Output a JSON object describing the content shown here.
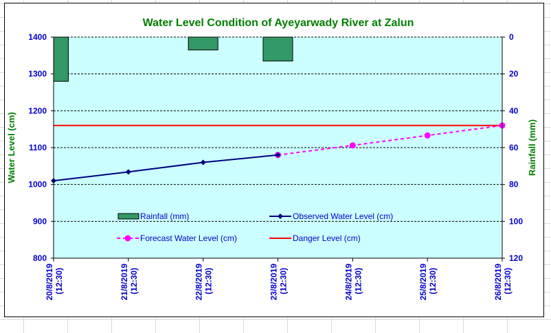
{
  "chart_data": {
    "type": "bar+line",
    "title": "Water Level Condition  of Ayeyarwady  River at Zalun",
    "ylabel": "Water Level (cm)",
    "y2label": "Rainfall (mm)",
    "ylim": [
      800,
      1400
    ],
    "y2lim": [
      0,
      120
    ],
    "y2_inverted": true,
    "yticks": [
      "800",
      "900",
      "1000",
      "1100",
      "1200",
      "1300",
      "1400"
    ],
    "y2ticks": [
      "0",
      "20",
      "40",
      "60",
      "80",
      "100",
      "120"
    ],
    "categories": [
      "20/8/2019 (12:30)",
      "21/8/2019 (12:30)",
      "22/8/2019 (12:30)",
      "23/8/2019 (12:30)",
      "24/8/2019 (12:30)",
      "25/8/2019 (12:30)",
      "26/8/2019 (12:30)"
    ],
    "grid": true,
    "legend_placement": "inside-bottom",
    "series": [
      {
        "name": "Rainfall (mm)",
        "type": "bar",
        "axis": "right",
        "color": "#339966",
        "values": [
          24,
          null,
          7,
          13,
          null,
          null,
          null
        ]
      },
      {
        "name": "Observed Water Level (cm)",
        "type": "line",
        "color": "#000080",
        "values": [
          1010,
          1034,
          1060,
          1080,
          null,
          null,
          null
        ]
      },
      {
        "name": "Forecast Water Level (cm)",
        "type": "dashed-line",
        "color": "#ff00ff",
        "values": [
          null,
          null,
          null,
          1080,
          1106,
          1133,
          1160
        ]
      },
      {
        "name": "Danger Level (cm)",
        "type": "line",
        "color": "#ff0000",
        "values": [
          1160,
          1160,
          1160,
          1160,
          1160,
          1160,
          1160
        ]
      }
    ],
    "colors": {
      "plot_bg": "#ccffff",
      "axis_text": "#0000cc",
      "title": "#008000"
    }
  }
}
